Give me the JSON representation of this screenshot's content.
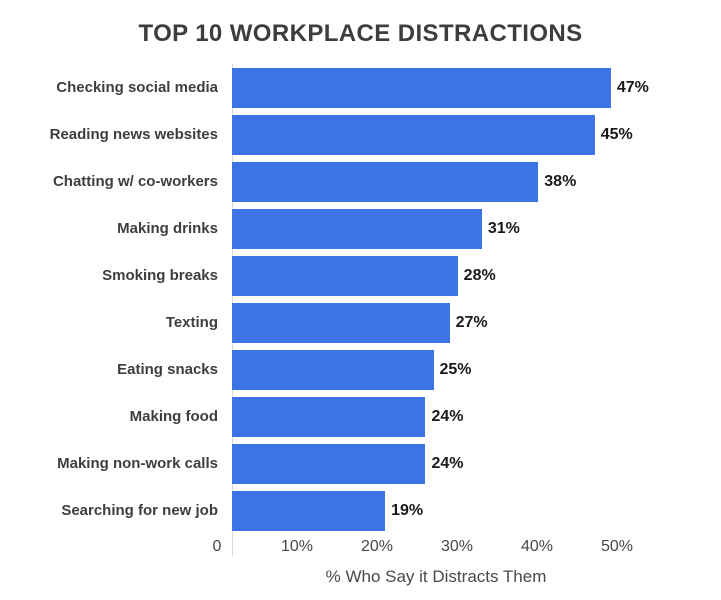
{
  "title": "TOP 10 WORKPLACE DISTRACTIONS",
  "colors": {
    "bar": "#3c74e6",
    "title_text": "#3d3d3d",
    "category_text": "#3e3e3e",
    "value_text": "#1a1a1a",
    "tick_text": "#474747",
    "axis_line": "#d8d8d8",
    "background": "#ffffff"
  },
  "chart_data": {
    "type": "bar",
    "orientation": "horizontal",
    "title": "TOP 10 WORKPLACE DISTRACTIONS",
    "categories": [
      "Checking social media",
      "Reading news websites",
      "Chatting w/ co-workers",
      "Making drinks",
      "Smoking breaks",
      "Texting",
      "Eating snacks",
      "Making food",
      "Making non-work calls",
      "Searching for new job"
    ],
    "values": [
      47,
      45,
      38,
      31,
      28,
      27,
      25,
      24,
      24,
      19
    ],
    "value_labels": [
      "47%",
      "45%",
      "38%",
      "31%",
      "28%",
      "27%",
      "25%",
      "24%",
      "24%",
      "19%"
    ],
    "xlabel": "% Who Say it Distracts Them",
    "ylabel": "",
    "xlim": [
      0,
      50
    ],
    "xtick_values": [
      0,
      10,
      20,
      30,
      40,
      50
    ],
    "xticks": [
      "0",
      "10%",
      "20%",
      "30%",
      "40%",
      "50%"
    ],
    "grid": false,
    "legend": false,
    "bar_color": "#3c74e6"
  }
}
